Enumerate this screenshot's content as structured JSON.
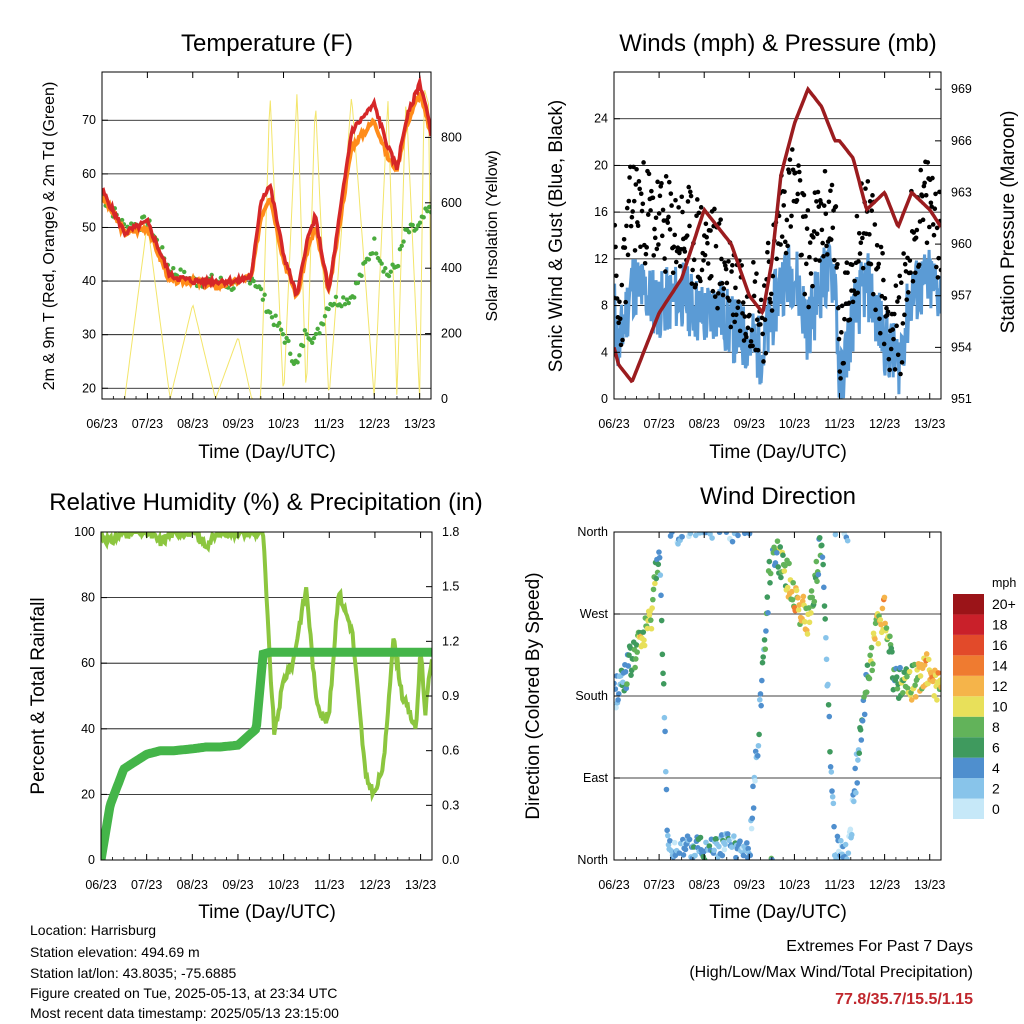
{
  "x_ticks": [
    "06/23",
    "07/23",
    "08/23",
    "09/23",
    "10/23",
    "11/23",
    "12/23",
    "13/23"
  ],
  "chart_data": [
    {
      "type": "line",
      "title": "Temperature (F)",
      "xlabel": "Time (Day/UTC)",
      "ylabel": "2m & 9m T (Red, Orange) & 2m Td (Green)",
      "y2label": "Solar Insolation (Yellow)",
      "ylim": [
        18,
        79
      ],
      "y2lim": [
        0,
        1000
      ],
      "yticks": [
        20,
        30,
        40,
        50,
        60,
        70
      ],
      "y2ticks": [
        0,
        200,
        400,
        600,
        800
      ],
      "x": [
        6,
        6.5,
        7,
        7.5,
        8,
        8.5,
        9,
        9.3,
        9.5,
        9.7,
        10,
        10.3,
        10.5,
        10.7,
        11,
        11.5,
        12,
        12.3,
        12.5,
        12.7,
        13,
        13.1,
        13.2,
        13.25
      ],
      "series": [
        {
          "values": [
            57,
            49,
            51,
            41,
            40,
            40,
            40,
            41,
            55,
            58,
            45,
            37,
            47,
            52,
            38,
            68,
            73,
            65,
            61,
            70,
            77,
            74,
            70,
            67
          ]
        },
        {
          "values": [
            56,
            49,
            50,
            40,
            40,
            39,
            40,
            41,
            52,
            56,
            44,
            37,
            45,
            50,
            38,
            65,
            70,
            63,
            61,
            69,
            75,
            72,
            69,
            67
          ]
        },
        {
          "values": [
            56,
            50,
            51,
            42,
            40,
            40,
            39,
            41,
            38,
            34,
            30,
            24,
            31,
            29,
            36,
            37,
            47,
            41,
            43,
            49,
            50,
            52,
            53,
            53
          ]
        },
        {
          "values": [
            0,
            0,
            540,
            0,
            290,
            0,
            190,
            0,
            0,
            940,
            0,
            950,
            0,
            920,
            0,
            930,
            0,
            920,
            0,
            930,
            0,
            950,
            900,
            250
          ]
        }
      ],
      "colors": {
        "t2m": "#d62728",
        "t9m": "#ff8c1a",
        "td": "#4aab3d",
        "solar": "#f3e56a"
      }
    },
    {
      "type": "scatter",
      "title": "Winds (mph) & Pressure (mb)",
      "xlabel": "Time (Day/UTC)",
      "ylabel": "Sonic Wind & Gust (Blue, Black)",
      "y2label": "Station Pressure (Maroon)",
      "ylim": [
        0,
        28
      ],
      "y2lim": [
        951,
        970
      ],
      "yticks": [
        0,
        4,
        8,
        12,
        16,
        20,
        24
      ],
      "y2ticks": [
        951,
        954,
        957,
        960,
        963,
        966,
        969
      ],
      "x": [
        6,
        6.1,
        6.4,
        7,
        7.5,
        8,
        8.3,
        8.6,
        9,
        9.3,
        9.5,
        9.7,
        10,
        10.3,
        10.6,
        10.9,
        11,
        11.3,
        11.6,
        12,
        12.3,
        12.6,
        13,
        13.25
      ],
      "series": [
        {
          "values": [
            8,
            4,
            10,
            8,
            9,
            7,
            8,
            6,
            5,
            4,
            7,
            10,
            11,
            6,
            10,
            11,
            1,
            7,
            10,
            5,
            3,
            9,
            10,
            9
          ]
        },
        {
          "values": [
            12,
            6,
            17,
            15,
            14,
            13,
            12,
            10,
            9,
            7,
            11,
            16,
            18,
            12,
            15,
            16,
            3,
            12,
            16,
            8,
            5,
            14,
            17,
            14
          ]
        },
        {
          "values": [
            954,
            953,
            952,
            956,
            958,
            962,
            961,
            960,
            957,
            956,
            959,
            964,
            967,
            969,
            968,
            966,
            966,
            965,
            962,
            963,
            961,
            963,
            962,
            961
          ]
        }
      ],
      "colors": {
        "wind": "#5b9bd5",
        "gust": "#000000",
        "pressure": "#9b1c1f"
      }
    },
    {
      "type": "line",
      "title": "Relative Humidity (%) & Precipitation (in)",
      "xlabel": "Time (Day/UTC)",
      "ylabel": "Percent & Total Rainfall",
      "ylim": [
        0,
        100
      ],
      "y2lim": [
        0,
        1.8
      ],
      "yticks": [
        0,
        20,
        40,
        60,
        80,
        100
      ],
      "y2ticks": [
        "0.0",
        "0.3",
        "0.6",
        "0.9",
        "1.2",
        "1.5",
        "1.8"
      ],
      "x": [
        6,
        6.2,
        6.5,
        7,
        7.3,
        7.6,
        8,
        8.3,
        8.6,
        9,
        9.4,
        9.55,
        9.7,
        9.8,
        10,
        10.2,
        10.35,
        10.5,
        10.7,
        10.9,
        11,
        11.2,
        11.5,
        11.8,
        12,
        12.2,
        12.4,
        12.6,
        12.9,
        13,
        13.1,
        13.25
      ],
      "series": [
        {
          "values": [
            99,
            97,
            100,
            100,
            97,
            100,
            100,
            96,
            100,
            100,
            100,
            100,
            60,
            38,
            55,
            60,
            72,
            83,
            50,
            42,
            45,
            82,
            70,
            25,
            20,
            30,
            68,
            50,
            40,
            65,
            45,
            62
          ]
        },
        {
          "values": [
            0,
            0.3,
            0.5,
            0.58,
            0.6,
            0.6,
            0.61,
            0.62,
            0.62,
            0.63,
            0.72,
            1.13,
            1.14,
            1.14,
            1.14,
            1.14,
            1.14,
            1.14,
            1.14,
            1.14,
            1.14,
            1.14,
            1.14,
            1.14,
            1.14,
            1.14,
            1.14,
            1.14,
            1.14,
            1.14,
            1.14,
            1.14
          ]
        }
      ],
      "colors": {
        "rh": "#8cc63f",
        "precip": "#44b549"
      }
    },
    {
      "type": "scatter",
      "title": "Wind Direction",
      "xlabel": "Time (Day/UTC)",
      "ylabel": "Direction (Colored By Speed)",
      "ylim": [
        0,
        360
      ],
      "ytick_labels": [
        "North",
        "East",
        "South",
        "West",
        "North"
      ],
      "colorbar_unit": "mph",
      "colorbar_labels": [
        "0",
        "2",
        "4",
        "6",
        "8",
        "10",
        "12",
        "14",
        "16",
        "18",
        "20+"
      ],
      "colorbar_colors": [
        "#c6e8f8",
        "#88c4ea",
        "#4f8fce",
        "#3f9a5e",
        "#62b35a",
        "#e8e05a",
        "#f5b44a",
        "#ef7b30",
        "#e24a2a",
        "#c9202a",
        "#9b1418"
      ],
      "x": [
        6,
        6.2,
        6.5,
        6.8,
        7,
        7.2,
        7.5,
        8,
        8.5,
        9,
        9.5,
        9.7,
        10,
        10.3,
        10.6,
        10.9,
        11.2,
        11.5,
        11.8,
        12,
        12.2,
        12.5,
        13,
        13.25
      ],
      "series": [
        {
          "values": [
            180,
            200,
            230,
            260,
            350,
            10,
            5,
            15,
            10,
            5,
            350,
            330,
            290,
            260,
            350,
            10,
            5,
            160,
            250,
            270,
            200,
            190,
            210,
            180
          ]
        },
        {
          "values": [
            3,
            5,
            9,
            11,
            6,
            4,
            3,
            5,
            4,
            3,
            7,
            9,
            12,
            11,
            6,
            4,
            2,
            6,
            11,
            12,
            6,
            9,
            13,
            12
          ]
        }
      ]
    }
  ],
  "info": {
    "location": "Location: Harrisburg",
    "elevation": "Station elevation: 494.69 m",
    "latlon": "Station lat/lon: 43.8035; -75.6885",
    "created": "Figure created on Tue, 2025-05-13, at 23:34 UTC",
    "recent": "Most recent data timestamp: 2025/05/13 23:15:00"
  },
  "extremes": {
    "line1": "Extremes For Past 7 Days",
    "line2": "(High/Low/Max Wind/Total Precipitation)",
    "values": "77.8/35.7/15.5/1.15"
  }
}
